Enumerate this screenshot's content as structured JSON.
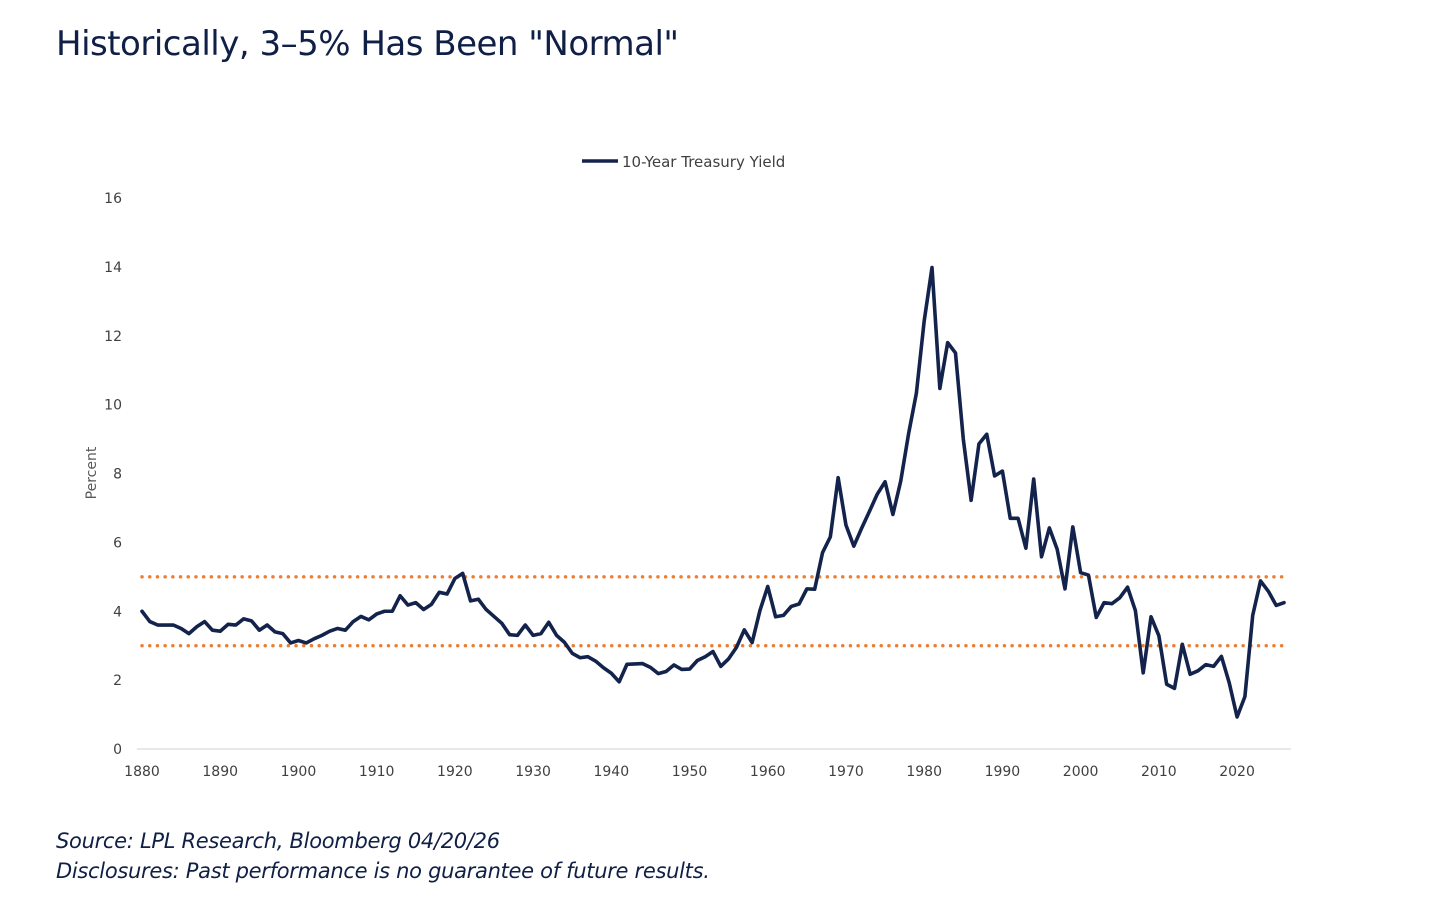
{
  "page": {
    "title": "Historically, 3–5% Has Been \"Normal\"",
    "source": "Source: LPL Research, Bloomberg 04/20/26",
    "disclosure": "Disclosures: Past performance is no guarantee of future results."
  },
  "colors": {
    "series": "#13234b",
    "reference": "#ed7d31",
    "axis": "#d9d9d9",
    "text": "#0f1f45"
  },
  "chart_data": {
    "type": "line",
    "ylabel": "Percent",
    "xlabel": "",
    "ylim": [
      0,
      16
    ],
    "xlim": [
      1880,
      2026
    ],
    "yticks": [
      0,
      2,
      4,
      6,
      8,
      10,
      12,
      14,
      16
    ],
    "xticks": [
      1880,
      1890,
      1900,
      1910,
      1920,
      1930,
      1940,
      1950,
      1960,
      1970,
      1980,
      1990,
      2000,
      2010,
      2020
    ],
    "legend": "top-center",
    "grid": false,
    "reference_lines": [
      {
        "y": 5,
        "style": "dotted"
      },
      {
        "y": 3,
        "style": "dotted"
      }
    ],
    "series": [
      {
        "name": "10-Year Treasury Yield",
        "x": [
          1880,
          1881,
          1882,
          1883,
          1884,
          1885,
          1886,
          1887,
          1888,
          1889,
          1890,
          1891,
          1892,
          1893,
          1894,
          1895,
          1896,
          1897,
          1898,
          1899,
          1900,
          1901,
          1902,
          1903,
          1904,
          1905,
          1906,
          1907,
          1908,
          1909,
          1910,
          1911,
          1912,
          1913,
          1914,
          1915,
          1916,
          1917,
          1918,
          1919,
          1920,
          1921,
          1922,
          1923,
          1924,
          1925,
          1926,
          1927,
          1928,
          1929,
          1930,
          1931,
          1932,
          1933,
          1934,
          1935,
          1936,
          1937,
          1938,
          1939,
          1940,
          1941,
          1942,
          1943,
          1944,
          1945,
          1946,
          1947,
          1948,
          1949,
          1950,
          1951,
          1952,
          1953,
          1954,
          1955,
          1956,
          1957,
          1958,
          1959,
          1960,
          1961,
          1962,
          1963,
          1964,
          1965,
          1966,
          1967,
          1968,
          1969,
          1970,
          1971,
          1972,
          1973,
          1974,
          1975,
          1976,
          1977,
          1978,
          1979,
          1980,
          1981,
          1982,
          1983,
          1984,
          1985,
          1986,
          1987,
          1988,
          1989,
          1990,
          1991,
          1992,
          1993,
          1994,
          1995,
          1996,
          1997,
          1998,
          1999,
          2000,
          2001,
          2002,
          2003,
          2004,
          2005,
          2006,
          2007,
          2008,
          2009,
          2010,
          2011,
          2012,
          2013,
          2014,
          2015,
          2016,
          2017,
          2018,
          2019,
          2020,
          2021,
          2022,
          2023,
          2024,
          2025,
          2026
        ],
        "values": [
          4.0,
          3.7,
          3.6,
          3.6,
          3.6,
          3.5,
          3.35,
          3.55,
          3.7,
          3.45,
          3.42,
          3.62,
          3.6,
          3.78,
          3.72,
          3.45,
          3.6,
          3.4,
          3.35,
          3.08,
          3.15,
          3.08,
          3.2,
          3.3,
          3.42,
          3.5,
          3.45,
          3.7,
          3.85,
          3.75,
          3.92,
          4.0,
          4.0,
          4.45,
          4.18,
          4.25,
          4.05,
          4.2,
          4.55,
          4.5,
          4.95,
          5.1,
          4.3,
          4.35,
          4.05,
          3.85,
          3.65,
          3.32,
          3.3,
          3.6,
          3.3,
          3.35,
          3.68,
          3.3,
          3.1,
          2.78,
          2.65,
          2.68,
          2.55,
          2.36,
          2.2,
          1.95,
          2.46,
          2.47,
          2.48,
          2.37,
          2.19,
          2.25,
          2.44,
          2.31,
          2.32,
          2.57,
          2.68,
          2.83,
          2.4,
          2.62,
          2.95,
          3.46,
          3.09,
          4.02,
          4.72,
          3.84,
          3.88,
          4.14,
          4.21,
          4.65,
          4.64,
          5.7,
          6.16,
          7.88,
          6.5,
          5.89,
          6.41,
          6.9,
          7.4,
          7.76,
          6.81,
          7.78,
          9.15,
          10.33,
          12.43,
          13.98,
          10.47,
          11.8,
          11.5,
          9.0,
          7.22,
          8.86,
          9.14,
          7.93,
          8.07,
          6.7,
          6.7,
          5.83,
          7.84,
          5.58,
          6.42,
          5.8,
          4.65,
          6.45,
          5.12,
          5.05,
          3.82,
          4.25,
          4.22,
          4.39,
          4.7,
          4.02,
          2.21,
          3.84,
          3.29,
          1.88,
          1.76,
          3.04,
          2.17,
          2.27,
          2.45,
          2.4,
          2.69,
          1.92,
          0.93,
          1.52,
          3.88,
          4.88,
          4.58,
          4.17,
          4.25
        ]
      }
    ]
  }
}
